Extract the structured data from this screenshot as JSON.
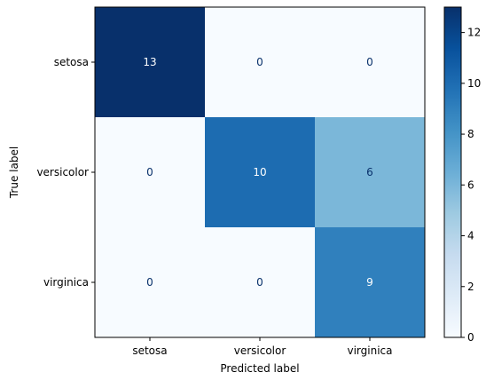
{
  "chart_data": {
    "type": "heatmap",
    "title": "",
    "xlabel": "Predicted label",
    "ylabel": "True label",
    "x_categories": [
      "setosa",
      "versicolor",
      "virginica"
    ],
    "y_categories": [
      "setosa",
      "versicolor",
      "virginica"
    ],
    "values": [
      [
        13,
        0,
        0
      ],
      [
        0,
        10,
        6
      ],
      [
        0,
        0,
        9
      ]
    ],
    "colormap": "Blues",
    "colorbar": {
      "range": [
        0,
        13
      ],
      "ticks": [
        0,
        2,
        4,
        6,
        8,
        10,
        12
      ]
    },
    "grid": false,
    "legend": "none"
  }
}
